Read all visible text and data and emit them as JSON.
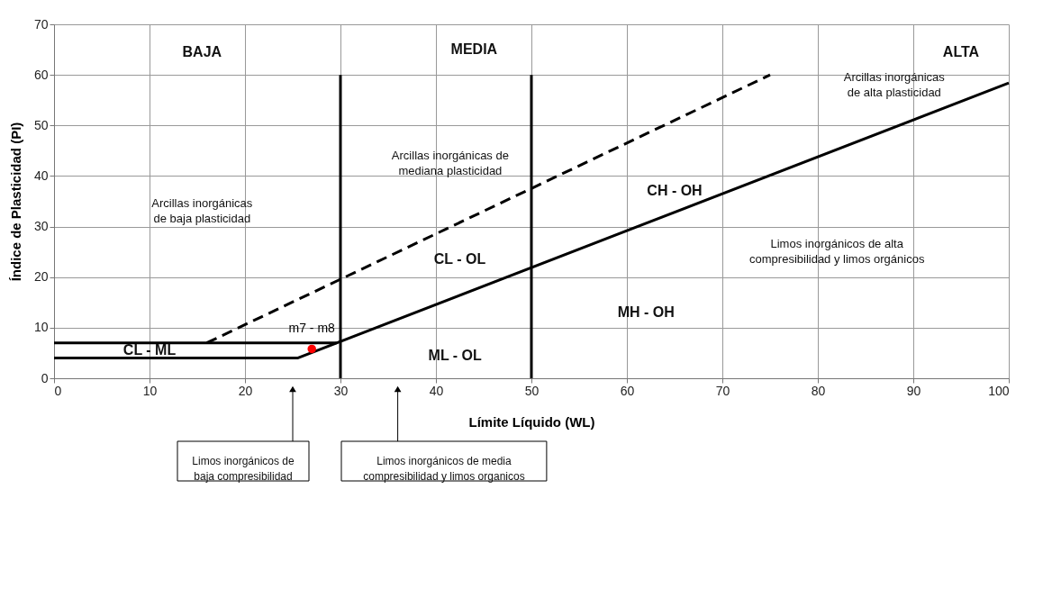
{
  "chart_data": {
    "type": "line",
    "xlabel": "Límite Líquido (WL)",
    "ylabel": "Índice de Plasticidad (PI)",
    "xlim": [
      0,
      100
    ],
    "ylim": [
      0,
      70
    ],
    "xticks": [
      0,
      10,
      20,
      30,
      40,
      50,
      60,
      70,
      80,
      90,
      100
    ],
    "yticks": [
      0,
      10,
      20,
      30,
      40,
      50,
      60,
      70
    ],
    "grid": true,
    "series": [
      {
        "color": "#000000",
        "line_style": "solid",
        "x": [
          0,
          25.5,
          100
        ],
        "values": [
          4,
          4,
          58.4
        ]
      },
      {
        "color": "#000000",
        "line_style": "solid",
        "x": [
          0,
          29.6
        ],
        "values": [
          7,
          7
        ]
      },
      {
        "color": "#000000",
        "line_style": "dashed",
        "x": [
          16,
          75
        ],
        "values": [
          7,
          60
        ]
      },
      {
        "color": "#000000",
        "line_style": "solid",
        "x": [
          30,
          30
        ],
        "values": [
          0,
          60
        ]
      },
      {
        "color": "#000000",
        "line_style": "solid",
        "x": [
          50,
          50
        ],
        "values": [
          0,
          60
        ]
      },
      {
        "type": "scatter",
        "name": "m7 - m8",
        "color": "#ff0000",
        "marker": "circle",
        "x": [
          27
        ],
        "values": [
          5.8
        ]
      }
    ],
    "annotations": [
      "BAJA",
      "MEDIA",
      "ALTA",
      "Arcillas inorgánicas\nde baja plasticidad",
      "Arcillas inorgánicas de\nmediana plasticidad",
      "Arcillas inorgánicas\nde alta plasticidad",
      "CH - OH",
      "CL - OL",
      "Limos inorgánicos de alta\ncompresibilidad y limos orgánicos",
      "MH - OH",
      "ML - OL",
      "CL - ML",
      "Limos inorgánicos de\nbaja compresibilidad",
      "Limos inorgánicos de media\ncompresibilidad y limos organicos"
    ]
  }
}
